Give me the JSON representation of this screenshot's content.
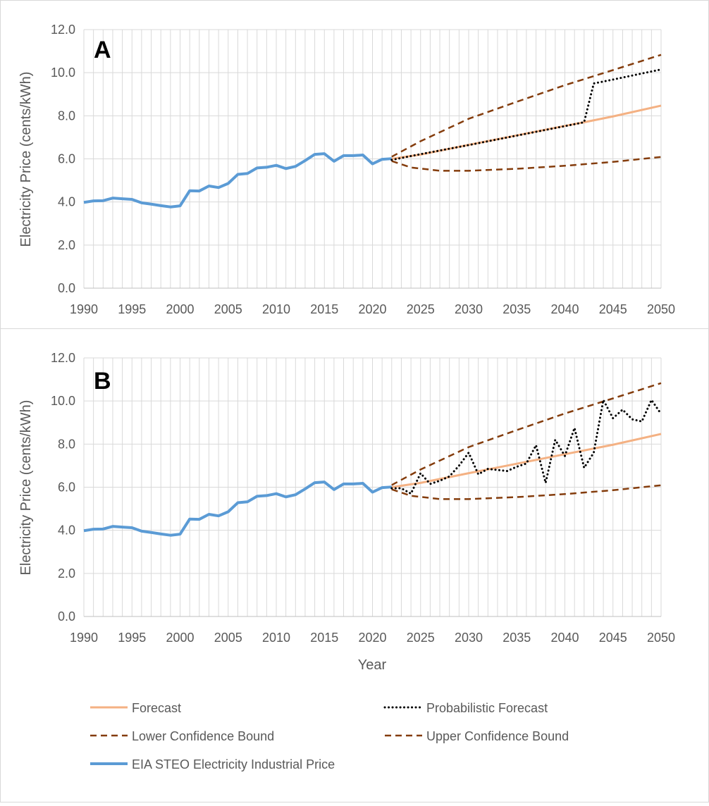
{
  "figure": {
    "xlabel": "Year",
    "legend": [
      {
        "label": "Forecast",
        "color": "#F4B183",
        "style": "solid"
      },
      {
        "label": "Probabilistic Forecast",
        "color": "#000000",
        "style": "dotted"
      },
      {
        "label": "Lower Confidence Bound",
        "color": "#843C0C",
        "style": "dashed"
      },
      {
        "label": "Upper Confidence Bound",
        "color": "#843C0C",
        "style": "dashed"
      },
      {
        "label": "EIA STEO Electricity Industrial Price",
        "color": "#5B9BD5",
        "style": "solid"
      }
    ]
  },
  "chart_data": [
    {
      "type": "line",
      "panel_label": "A",
      "ylabel": "Electricity Price (cents/kWh)",
      "xlabel": "",
      "xlim": [
        1990,
        2050
      ],
      "ylim": [
        0,
        12
      ],
      "x_ticks": [
        1990,
        1995,
        2000,
        2005,
        2010,
        2015,
        2020,
        2025,
        2030,
        2035,
        2040,
        2045,
        2050
      ],
      "y_ticks": [
        "0.0",
        "2.0",
        "4.0",
        "6.0",
        "8.0",
        "10.0",
        "12.0"
      ],
      "grid": "vertical yearly, horizontal every 2.0",
      "series": [
        {
          "name": "EIA STEO Electricity Industrial Price",
          "color": "#5B9BD5",
          "style": "solid",
          "x": [
            1990,
            1991,
            1992,
            1993,
            1994,
            1995,
            1996,
            1997,
            1998,
            1999,
            2000,
            2001,
            2002,
            2003,
            2004,
            2005,
            2006,
            2007,
            2008,
            2009,
            2010,
            2011,
            2012,
            2013,
            2014,
            2015,
            2016,
            2017,
            2018,
            2019,
            2020,
            2021,
            2022
          ],
          "y": [
            3.98,
            4.05,
            4.06,
            4.18,
            4.15,
            4.12,
            3.96,
            3.9,
            3.83,
            3.77,
            3.82,
            4.52,
            4.51,
            4.74,
            4.67,
            4.86,
            5.28,
            5.32,
            5.58,
            5.61,
            5.7,
            5.55,
            5.65,
            5.92,
            6.21,
            6.24,
            5.89,
            6.15,
            6.15,
            6.18,
            5.77,
            5.98,
            6.01
          ]
        },
        {
          "name": "Forecast",
          "color": "#F4B183",
          "style": "solid",
          "x": [
            2022,
            2025,
            2030,
            2035,
            2040,
            2042,
            2045,
            2050
          ],
          "y": [
            6.0,
            6.2,
            6.65,
            7.09,
            7.53,
            7.7,
            7.97,
            8.47
          ]
        },
        {
          "name": "Upper Confidence Bound",
          "color": "#843C0C",
          "style": "dashed",
          "x": [
            2022,
            2025,
            2030,
            2035,
            2040,
            2045,
            2050
          ],
          "y": [
            6.1,
            6.82,
            7.86,
            8.65,
            9.42,
            10.12,
            10.83
          ]
        },
        {
          "name": "Lower Confidence Bound",
          "color": "#843C0C",
          "style": "dashed",
          "x": [
            2022,
            2024,
            2027,
            2030,
            2035,
            2040,
            2045,
            2050
          ],
          "y": [
            5.9,
            5.6,
            5.45,
            5.45,
            5.54,
            5.68,
            5.86,
            6.09
          ]
        },
        {
          "name": "Probabilistic Forecast",
          "color": "#000000",
          "style": "dotted",
          "x": [
            2022,
            2025,
            2030,
            2035,
            2040,
            2042,
            2043,
            2045,
            2050
          ],
          "y": [
            5.95,
            6.22,
            6.64,
            7.08,
            7.52,
            7.7,
            9.5,
            9.68,
            10.15
          ]
        }
      ]
    },
    {
      "type": "line",
      "panel_label": "B",
      "ylabel": "Electricity Price (cents/kWh)",
      "xlabel": "Year",
      "xlim": [
        1990,
        2050
      ],
      "ylim": [
        0,
        12
      ],
      "x_ticks": [
        1990,
        1995,
        2000,
        2005,
        2010,
        2015,
        2020,
        2025,
        2030,
        2035,
        2040,
        2045,
        2050
      ],
      "y_ticks": [
        "0.0",
        "2.0",
        "4.0",
        "6.0",
        "8.0",
        "10.0",
        "12.0"
      ],
      "grid": "vertical yearly, horizontal every 2.0",
      "series": [
        {
          "name": "EIA STEO Electricity Industrial Price",
          "color": "#5B9BD5",
          "style": "solid",
          "x": [
            1990,
            1991,
            1992,
            1993,
            1994,
            1995,
            1996,
            1997,
            1998,
            1999,
            2000,
            2001,
            2002,
            2003,
            2004,
            2005,
            2006,
            2007,
            2008,
            2009,
            2010,
            2011,
            2012,
            2013,
            2014,
            2015,
            2016,
            2017,
            2018,
            2019,
            2020,
            2021,
            2022
          ],
          "y": [
            3.98,
            4.05,
            4.06,
            4.18,
            4.15,
            4.12,
            3.96,
            3.9,
            3.83,
            3.77,
            3.82,
            4.52,
            4.51,
            4.74,
            4.67,
            4.86,
            5.28,
            5.32,
            5.58,
            5.61,
            5.7,
            5.55,
            5.65,
            5.92,
            6.21,
            6.24,
            5.89,
            6.15,
            6.15,
            6.18,
            5.77,
            5.98,
            6.01
          ]
        },
        {
          "name": "Forecast",
          "color": "#F4B183",
          "style": "solid",
          "x": [
            2022,
            2025,
            2030,
            2035,
            2040,
            2045,
            2050
          ],
          "y": [
            6.0,
            6.2,
            6.65,
            7.09,
            7.53,
            7.97,
            8.47
          ]
        },
        {
          "name": "Upper Confidence Bound",
          "color": "#843C0C",
          "style": "dashed",
          "x": [
            2022,
            2025,
            2030,
            2035,
            2040,
            2045,
            2050
          ],
          "y": [
            6.1,
            6.82,
            7.86,
            8.65,
            9.42,
            10.12,
            10.83
          ]
        },
        {
          "name": "Lower Confidence Bound",
          "color": "#843C0C",
          "style": "dashed",
          "x": [
            2022,
            2024,
            2027,
            2030,
            2035,
            2040,
            2045,
            2050
          ],
          "y": [
            5.9,
            5.6,
            5.45,
            5.45,
            5.54,
            5.68,
            5.86,
            6.09
          ]
        },
        {
          "name": "Probabilistic Forecast",
          "color": "#000000",
          "style": "dotted",
          "x": [
            2022,
            2023,
            2024,
            2025,
            2026,
            2027,
            2028,
            2029,
            2030,
            2031,
            2032,
            2033,
            2034,
            2035,
            2036,
            2037,
            2038,
            2039,
            2040,
            2041,
            2042,
            2043,
            2044,
            2045,
            2046,
            2047,
            2048,
            2049,
            2050
          ],
          "y": [
            5.95,
            5.95,
            5.7,
            6.65,
            6.15,
            6.3,
            6.5,
            7.0,
            7.6,
            6.6,
            6.85,
            6.8,
            6.75,
            6.95,
            7.1,
            7.95,
            6.2,
            8.2,
            7.45,
            8.75,
            6.9,
            7.6,
            10.05,
            9.2,
            9.6,
            9.15,
            9.05,
            10.05,
            9.4
          ]
        }
      ]
    }
  ]
}
